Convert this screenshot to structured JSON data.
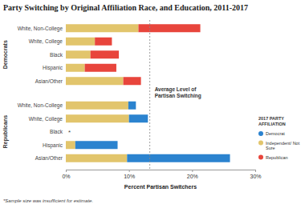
{
  "chart_data": {
    "type": "bar",
    "orientation": "horizontal",
    "stacked": true,
    "title": "Party Switching by Original Affiliation Race, and Education, 2011-2017",
    "categories": [
      "White, Non-College",
      "White, College",
      "Black",
      "Hispanic",
      "Asian/Other",
      "White, Non-College",
      "White, College",
      "Black",
      "Hispanic",
      "Asian/Other"
    ],
    "category_groups": [
      "Democrats",
      "Democrats",
      "Democrats",
      "Democrats",
      "Democrats",
      "Republicans",
      "Republicans",
      "Republicans",
      "Republicans",
      "Republicans"
    ],
    "series": [
      {
        "name": "Democrat",
        "color": "#2b83cf",
        "values": [
          null,
          null,
          null,
          null,
          null,
          1.2,
          3.0,
          null,
          6.7,
          16.3
        ]
      },
      {
        "name": "Independent/ Not Sure",
        "color": "#e2c56c",
        "values": [
          11.5,
          4.6,
          3.9,
          3.0,
          9.1,
          9.9,
          10.0,
          null,
          1.5,
          9.7
        ]
      },
      {
        "name": "Republican",
        "color": "#e8453c",
        "values": [
          9.8,
          2.7,
          4.5,
          5.0,
          2.8,
          null,
          null,
          null,
          null,
          null
        ]
      }
    ],
    "xlim": [
      0,
      30
    ],
    "xticks": [
      {
        "value": 0,
        "label": "0%"
      },
      {
        "value": 10,
        "label": "10%"
      },
      {
        "value": 20,
        "label": "20%"
      },
      {
        "value": 30,
        "label": "30%"
      }
    ],
    "xlabel": "Percent Partisan Switchers",
    "legend": "right",
    "legend_title": "2017 PARTY AFFILIATION",
    "annotations": [
      {
        "text": "Average Level of Partisan Switching",
        "x": 13.3,
        "line_style": "dashed"
      }
    ],
    "missing_label": "*",
    "note": "*Sample size was insufficient for estimate."
  }
}
